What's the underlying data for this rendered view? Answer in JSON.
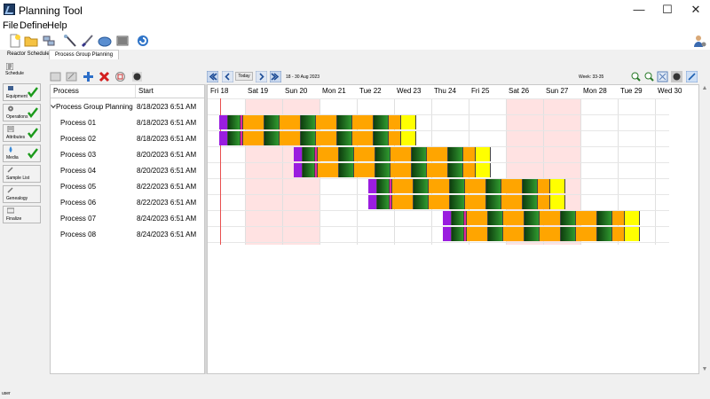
{
  "app": {
    "title": "Planning Tool"
  },
  "window_controls": {
    "minimize": "—",
    "maximize": "☐",
    "close": "✕"
  },
  "menu": [
    "File",
    "Define",
    "Help"
  ],
  "toolbar": [
    "new-document-icon",
    "open-folder-icon",
    "network-icon",
    "wand-icon",
    "brush-icon",
    "cloud-icon",
    "barcode-icon",
    "refresh-icon",
    "user-settings-icon"
  ],
  "tabs": [
    {
      "label": "Reactor Schedule",
      "active": false
    },
    {
      "label": "Process Group Planning",
      "active": true
    }
  ],
  "sidebar": [
    {
      "label": "Schedule",
      "icon": "schedule-icon",
      "checked": false,
      "button": false
    },
    {
      "label": "Equipment",
      "icon": "equipment-icon",
      "checked": true,
      "button": true
    },
    {
      "label": "Operations",
      "icon": "operations-icon",
      "checked": true,
      "button": true
    },
    {
      "label": "Attributes",
      "icon": "attributes-icon",
      "checked": true,
      "button": true
    },
    {
      "label": "Media",
      "icon": "media-icon",
      "checked": true,
      "button": true
    },
    {
      "label": "Sample List",
      "icon": "sample-list-icon",
      "checked": false,
      "button": true
    },
    {
      "label": "Genealogy",
      "icon": "genealogy-icon",
      "checked": false,
      "button": true
    },
    {
      "label": "Finalize",
      "icon": "finalize-icon",
      "checked": false,
      "button": true
    }
  ],
  "grid_toolbar": {
    "icons": [
      "save-icon",
      "edit-icon",
      "add-icon",
      "delete-icon",
      "copy-icon",
      "lock-icon"
    ],
    "today_label": "Today",
    "date_range": "18 - 30 Aug 2023",
    "week_label": "Week: 33-35"
  },
  "grid": {
    "columns": [
      "Process",
      "Start"
    ],
    "group": {
      "name": "Process Group Planning",
      "start": "8/18/2023 6:51 AM"
    },
    "rows": [
      {
        "name": "Process  01",
        "start": "8/18/2023 6:51 AM",
        "start_day": 0
      },
      {
        "name": "Process  02",
        "start": "8/18/2023 6:51 AM",
        "start_day": 0
      },
      {
        "name": "Process  03",
        "start": "8/20/2023 6:51 AM",
        "start_day": 2
      },
      {
        "name": "Process  04",
        "start": "8/20/2023 6:51 AM",
        "start_day": 2
      },
      {
        "name": "Process  05",
        "start": "8/22/2023 6:51 AM",
        "start_day": 4
      },
      {
        "name": "Process  06",
        "start": "8/22/2023 6:51 AM",
        "start_day": 4
      },
      {
        "name": "Process  07",
        "start": "8/24/2023 6:51 AM",
        "start_day": 6
      },
      {
        "name": "Process  08",
        "start": "8/24/2023 6:51 AM",
        "start_day": 6
      }
    ]
  },
  "gantt": {
    "days": [
      "Fri 18",
      "Sat 19",
      "Sun 20",
      "Mon 21",
      "Tue 22",
      "Wed 23",
      "Thu 24",
      "Fri 25",
      "Sat 26",
      "Sun 27",
      "Mon 28",
      "Tue 29",
      "Wed 30"
    ],
    "weekend_days": [
      1,
      2,
      8,
      9
    ],
    "colors": {
      "purple": "#9a1ddf",
      "magenta": "#e0269d",
      "orange": "#ffa500",
      "green_dark": "#0e3d0e",
      "green_light": "#2f9a2f",
      "yellow": "#ffff00",
      "weekend": "#ffe2e2",
      "today_line": "#e85050"
    }
  },
  "status": {
    "user": "user"
  }
}
